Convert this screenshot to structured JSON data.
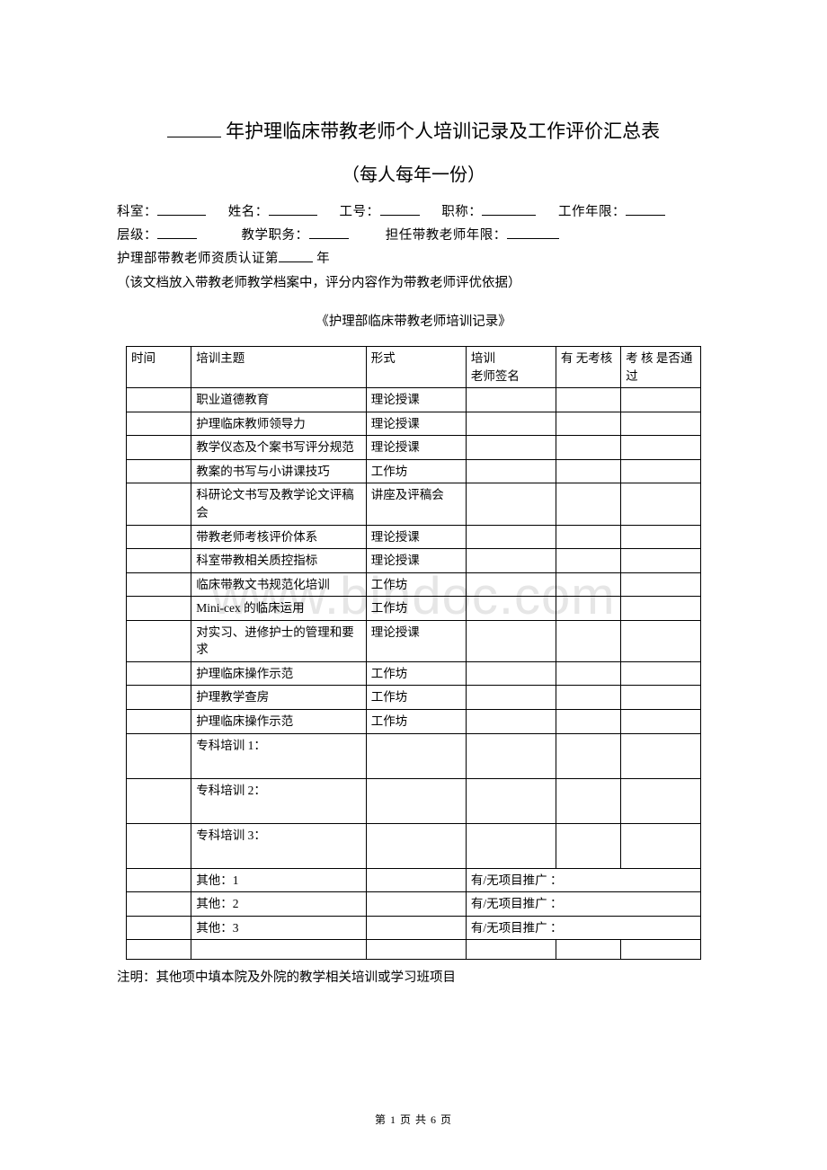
{
  "title_suffix": "年护理临床带教老师个人培训记录及工作评价汇总表",
  "subtitle": "（每人每年一份）",
  "info": {
    "dept_label": "科室：",
    "name_label": "姓名：",
    "empno_label": "工号：",
    "title_label": "职称：",
    "years_label": "工作年限：",
    "level_label": "层级：",
    "teachrole_label": "教学职务：",
    "teachyears_label": "担任带教老师年限：",
    "cert_prefix": "护理部带教老师资质认证第",
    "cert_suffix": "年"
  },
  "note": "（该文档放入带教老师教学档案中，评分内容作为带教老师评优依据）",
  "section_title": "《护理部临床带教老师培训记录》",
  "table": {
    "headers": {
      "time": "时间",
      "topic": "培训主题",
      "form": "形式",
      "sign": "培训\n老师签名",
      "kh": "有 无考核",
      "pass": "考 核 是否通过"
    },
    "rows": [
      {
        "topic": "职业道德教育",
        "form": "理论授课"
      },
      {
        "topic": "护理临床教师领导力",
        "form": "理论授课"
      },
      {
        "topic": "教学仪态及个案书写评分规范",
        "form": "理论授课"
      },
      {
        "topic": "教案的书写与小讲课技巧",
        "form": "工作坊"
      },
      {
        "topic": "科研论文书写及教学论文评稿会",
        "form": "讲座及评稿会"
      },
      {
        "topic": "带教老师考核评价体系",
        "form": "理论授课"
      },
      {
        "topic": "科室带教相关质控指标",
        "form": "理论授课"
      },
      {
        "topic": "临床带教文书规范化培训",
        "form": "工作坊"
      },
      {
        "topic": "Mini-cex 的临床运用",
        "form": "工作坊"
      },
      {
        "topic": "对实习、进修护士的管理和要求",
        "form": "理论授课"
      },
      {
        "topic": "护理临床操作示范",
        "form": "工作坊"
      },
      {
        "topic": "护理教学查房",
        "form": "工作坊"
      },
      {
        "topic": "护理临床操作示范",
        "form": "工作坊"
      },
      {
        "topic": "专科培训 1：",
        "form": "",
        "tall": true
      },
      {
        "topic": "专科培训 2：",
        "form": "",
        "tall": true
      },
      {
        "topic": "专科培训 3：",
        "form": "",
        "tall": true
      }
    ],
    "other_rows": [
      {
        "topic": "其他：1",
        "merged": "有/无项目推广 ："
      },
      {
        "topic": "其他：2",
        "merged": "有/无项目推广 ："
      },
      {
        "topic": "其他：3",
        "merged": "有/无项目推广 ："
      }
    ]
  },
  "footnote": "注明：其他项中填本院及外院的教学相关培训或学习班项目",
  "pager": "第 1 页 共 6 页",
  "watermark": "www.bindoc.com"
}
